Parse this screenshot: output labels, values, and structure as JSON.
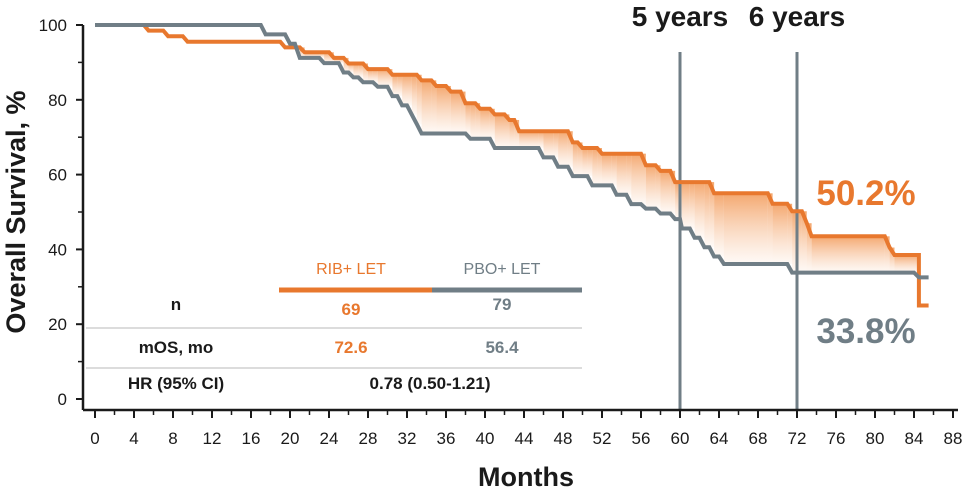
{
  "chart_data": {
    "type": "line",
    "xlabel": "Months",
    "ylabel": "Overall Survival, %",
    "xlim": [
      0,
      88
    ],
    "ylim": [
      0,
      100
    ],
    "xticks": [
      "0",
      "4",
      "8",
      "12",
      "16",
      "20",
      "24",
      "28",
      "32",
      "36",
      "40",
      "44",
      "48",
      "52",
      "56",
      "60",
      "64",
      "68",
      "72",
      "76",
      "80",
      "84",
      "88"
    ],
    "yticks": [
      "0",
      "20",
      "40",
      "60",
      "80",
      "100"
    ],
    "grid": false,
    "series": [
      {
        "name": "RIB+ LET",
        "color": "#e8782e",
        "points": [
          [
            0,
            100
          ],
          [
            5,
            100
          ],
          [
            5.5,
            98.5
          ],
          [
            7,
            98.5
          ],
          [
            7.5,
            97
          ],
          [
            9,
            97
          ],
          [
            9.5,
            95.5
          ],
          [
            19,
            95.5
          ],
          [
            19.5,
            94
          ],
          [
            21,
            94
          ],
          [
            21.5,
            92.7
          ],
          [
            24,
            92.7
          ],
          [
            24.5,
            91.2
          ],
          [
            25.5,
            91.2
          ],
          [
            26,
            89.7
          ],
          [
            27.5,
            89.7
          ],
          [
            28,
            88.2
          ],
          [
            30,
            88.2
          ],
          [
            30.5,
            86.7
          ],
          [
            33,
            86.7
          ],
          [
            33.5,
            85.2
          ],
          [
            34.5,
            85.2
          ],
          [
            35,
            83.7
          ],
          [
            36,
            83.7
          ],
          [
            36.5,
            82.2
          ],
          [
            37.5,
            82.2
          ],
          [
            38,
            79.1
          ],
          [
            39,
            79.1
          ],
          [
            39.5,
            77.6
          ],
          [
            40.5,
            77.6
          ],
          [
            41,
            76.1
          ],
          [
            42,
            76.1
          ],
          [
            42.5,
            74.6
          ],
          [
            43,
            74.6
          ],
          [
            43.5,
            71.6
          ],
          [
            48.5,
            71.6
          ],
          [
            49,
            68.6
          ],
          [
            49.5,
            68.6
          ],
          [
            50,
            67.1
          ],
          [
            51.5,
            67.1
          ],
          [
            52,
            65.6
          ],
          [
            56,
            65.6
          ],
          [
            56.5,
            62.5
          ],
          [
            57.5,
            62.5
          ],
          [
            58,
            61
          ],
          [
            59,
            61
          ],
          [
            59.5,
            58
          ],
          [
            63,
            58
          ],
          [
            63.5,
            55
          ],
          [
            69,
            55
          ],
          [
            69.5,
            52.2
          ],
          [
            71,
            52.2
          ],
          [
            71.5,
            50.2
          ],
          [
            72.5,
            50.2
          ],
          [
            73,
            47
          ],
          [
            73.5,
            43.5
          ],
          [
            81,
            43.5
          ],
          [
            81.5,
            40.5
          ],
          [
            82,
            38.5
          ],
          [
            84.5,
            38.5
          ],
          [
            84.5,
            25
          ],
          [
            85.5,
            25
          ]
        ],
        "final_label": "50.2%"
      },
      {
        "name": "PBO+ LET",
        "color": "#707e86",
        "points": [
          [
            0,
            100
          ],
          [
            17,
            100
          ],
          [
            17.5,
            97.5
          ],
          [
            19.5,
            97.5
          ],
          [
            20,
            95
          ],
          [
            20.5,
            95
          ],
          [
            21,
            91.2
          ],
          [
            23,
            91.2
          ],
          [
            23.5,
            89.8
          ],
          [
            25,
            89.8
          ],
          [
            25.5,
            87.3
          ],
          [
            26,
            87.3
          ],
          [
            26.5,
            86
          ],
          [
            27,
            86
          ],
          [
            27.5,
            84.7
          ],
          [
            28.5,
            84.7
          ],
          [
            29,
            83.5
          ],
          [
            30,
            83.5
          ],
          [
            30.5,
            81
          ],
          [
            31,
            81
          ],
          [
            31.5,
            78.5
          ],
          [
            32,
            78.5
          ],
          [
            32.5,
            76
          ],
          [
            33,
            73.5
          ],
          [
            33.5,
            71
          ],
          [
            38,
            71
          ],
          [
            38.5,
            69.6
          ],
          [
            40.5,
            69.6
          ],
          [
            41,
            67.1
          ],
          [
            45.5,
            67.1
          ],
          [
            46,
            64.6
          ],
          [
            47,
            64.6
          ],
          [
            47.5,
            62.1
          ],
          [
            48.5,
            62.1
          ],
          [
            49,
            59.6
          ],
          [
            50.5,
            59.6
          ],
          [
            51,
            57.1
          ],
          [
            53,
            57.1
          ],
          [
            53.5,
            54.6
          ],
          [
            54.5,
            54.6
          ],
          [
            55,
            52.1
          ],
          [
            56,
            52.1
          ],
          [
            56.5,
            50.9
          ],
          [
            57.5,
            50.9
          ],
          [
            58,
            49.6
          ],
          [
            59,
            49.6
          ],
          [
            59.5,
            48.1
          ],
          [
            60,
            48.1
          ],
          [
            60.2,
            45.6
          ],
          [
            61,
            45.6
          ],
          [
            61.5,
            43.1
          ],
          [
            62,
            43.1
          ],
          [
            62.5,
            40.6
          ],
          [
            63,
            40.6
          ],
          [
            63.5,
            38.1
          ],
          [
            64,
            38.1
          ],
          [
            64.5,
            36.1
          ],
          [
            71,
            36.1
          ],
          [
            71.5,
            33.8
          ],
          [
            84,
            33.8
          ],
          [
            84.5,
            32.5
          ],
          [
            85.5,
            32.5
          ]
        ],
        "final_label": "33.8%"
      }
    ],
    "vertical_markers": [
      {
        "x": 60,
        "label": "5 years"
      },
      {
        "x": 72,
        "label": "6 years"
      }
    ],
    "table": {
      "columns": [
        "RIB+ LET",
        "PBO+ LET"
      ],
      "rows": [
        {
          "label": "n",
          "values": [
            "69",
            "79"
          ]
        },
        {
          "label": "mOS, mo",
          "values": [
            "72.6",
            "56.4"
          ]
        },
        {
          "label": "HR (95% CI)",
          "value": "0.78 (0.50-1.21)"
        }
      ]
    }
  }
}
